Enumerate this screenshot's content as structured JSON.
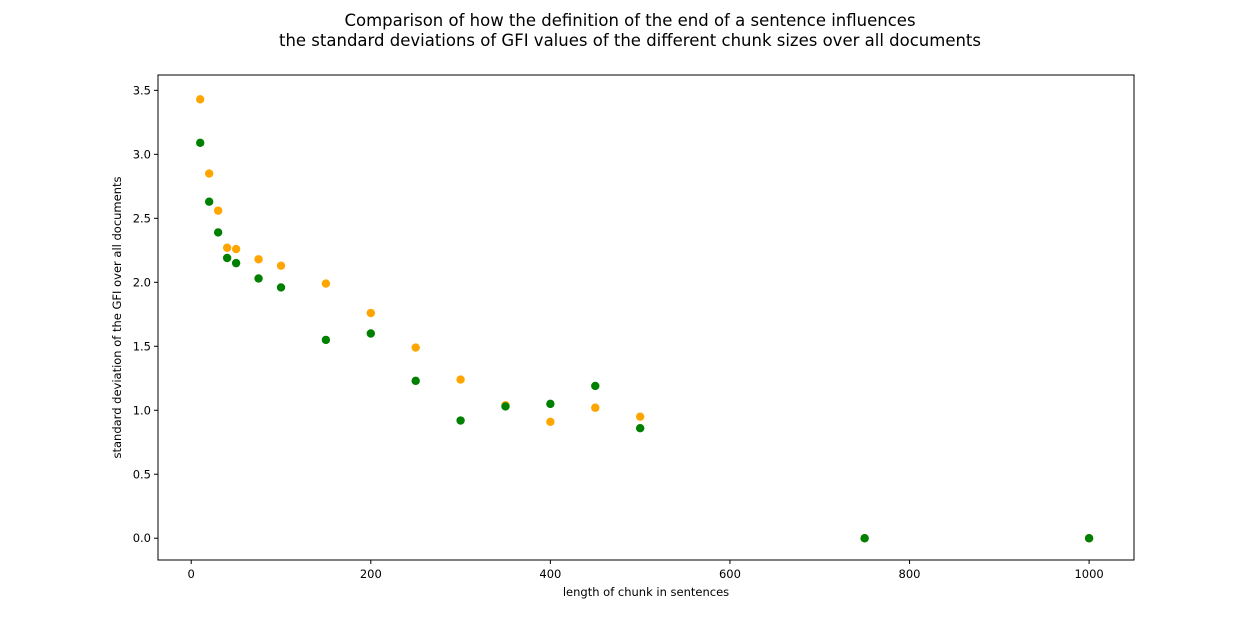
{
  "chart_data": {
    "type": "scatter",
    "title": [
      "Comparison of how the definition of the end of a sentence influences",
      "the standard deviations of GFI values of the different chunk sizes over all documents"
    ],
    "xlabel": "length of chunk in sentences",
    "ylabel": "standard deviation of the GFI over all documents",
    "xlim": [
      -37,
      1050
    ],
    "ylim": [
      -0.17,
      3.62
    ],
    "xticks": [
      0,
      200,
      400,
      600,
      800,
      1000
    ],
    "xtick_labels": [
      "0",
      "200",
      "400",
      "600",
      "800",
      "1000"
    ],
    "yticks": [
      0.0,
      0.5,
      1.0,
      1.5,
      2.0,
      2.5,
      3.0,
      3.5
    ],
    "ytick_labels": [
      "0.0",
      "0.5",
      "1.0",
      "1.5",
      "2.0",
      "2.5",
      "3.0",
      "3.5"
    ],
    "grid": false,
    "legend": false,
    "series": [
      {
        "color": "#ffa500",
        "points": [
          [
            10,
            3.43
          ],
          [
            20,
            2.85
          ],
          [
            30,
            2.56
          ],
          [
            40,
            2.27
          ],
          [
            50,
            2.26
          ],
          [
            75,
            2.18
          ],
          [
            100,
            2.13
          ],
          [
            150,
            1.99
          ],
          [
            200,
            1.76
          ],
          [
            250,
            1.49
          ],
          [
            300,
            1.24
          ],
          [
            350,
            1.04
          ],
          [
            400,
            0.91
          ],
          [
            450,
            1.02
          ],
          [
            500,
            0.95
          ],
          [
            750,
            0.0
          ],
          [
            1000,
            0.0
          ]
        ]
      },
      {
        "color": "#008000",
        "points": [
          [
            10,
            3.09
          ],
          [
            20,
            2.63
          ],
          [
            30,
            2.39
          ],
          [
            40,
            2.19
          ],
          [
            50,
            2.15
          ],
          [
            75,
            2.03
          ],
          [
            100,
            1.96
          ],
          [
            150,
            1.55
          ],
          [
            200,
            1.6
          ],
          [
            250,
            1.23
          ],
          [
            300,
            0.92
          ],
          [
            350,
            1.03
          ],
          [
            400,
            1.05
          ],
          [
            450,
            1.19
          ],
          [
            500,
            0.86
          ],
          [
            750,
            0.0
          ],
          [
            1000,
            0.0
          ]
        ]
      }
    ]
  }
}
